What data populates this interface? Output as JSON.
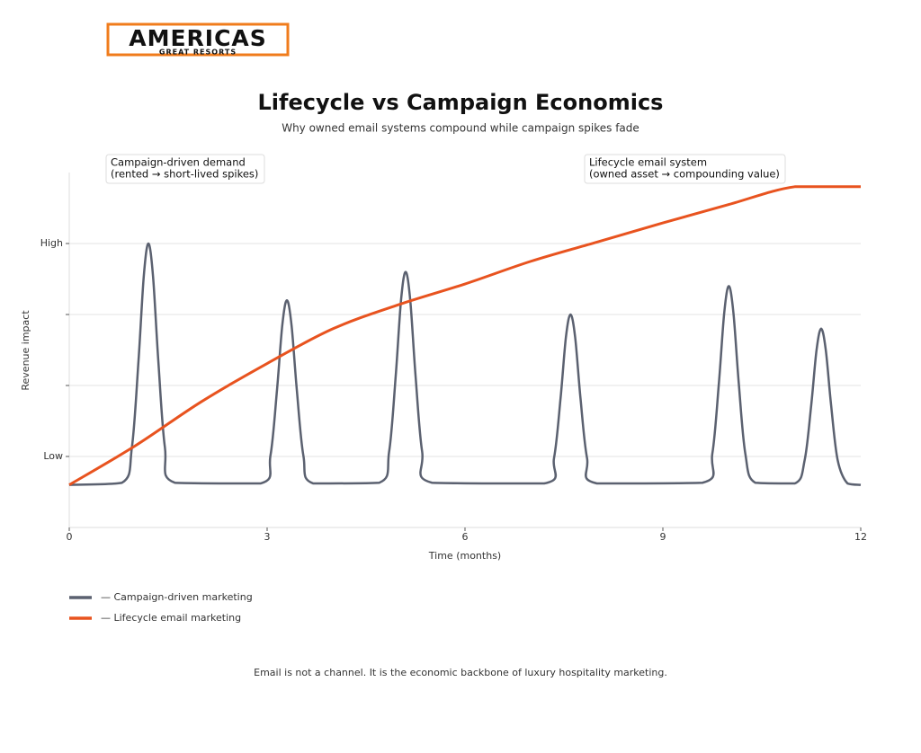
{
  "logo": {
    "name": "AMERICAS",
    "tagline": "GREAT RESORTS"
  },
  "chart_data": {
    "type": "line",
    "title": "Lifecycle vs Campaign Economics",
    "subtitle": "Why owned email systems compound while campaign spikes fade",
    "x_label": "Time (months)",
    "y_label": "Revenue impact",
    "xlim": [
      0,
      12
    ],
    "xticks": [
      0,
      3,
      6,
      9,
      12
    ],
    "ylim": [
      0,
      5
    ],
    "yticks": [
      {
        "value": 1,
        "label": "Low"
      },
      {
        "value": 2,
        "label": null
      },
      {
        "value": 3,
        "label": null
      },
      {
        "value": 4,
        "label": "High"
      }
    ],
    "grid": true,
    "annotations": [
      [
        "Campaign-driven demand",
        "(rented → short-lived spikes)"
      ],
      [
        "Lifecycle email system",
        "(owned asset → compounding value)"
      ]
    ],
    "series": [
      {
        "name": "— Campaign-driven marketing",
        "color": "#5b6170",
        "x": [
          0,
          0.8,
          0.95,
          1.05,
          1.13,
          1.2,
          1.27,
          1.35,
          1.45,
          1.6,
          2.9,
          3.05,
          3.15,
          3.23,
          3.3,
          3.37,
          3.45,
          3.55,
          3.7,
          4.7,
          4.85,
          4.95,
          5.03,
          5.1,
          5.17,
          5.25,
          5.35,
          5.5,
          7.2,
          7.35,
          7.45,
          7.53,
          7.6,
          7.67,
          7.75,
          7.85,
          8.0,
          9.6,
          9.75,
          9.85,
          9.93,
          10.0,
          10.07,
          10.15,
          10.25,
          10.4,
          11.0,
          11.15,
          11.25,
          11.33,
          11.4,
          11.47,
          11.55,
          11.65,
          11.8,
          12
        ],
        "values": [
          0.6,
          0.63,
          1.13,
          2.35,
          3.54,
          4.0,
          3.54,
          2.35,
          1.13,
          0.63,
          0.62,
          1.01,
          1.94,
          2.85,
          3.2,
          2.85,
          1.94,
          1.01,
          0.62,
          0.63,
          1.07,
          2.14,
          3.2,
          3.6,
          3.2,
          2.14,
          1.07,
          0.63,
          0.62,
          0.98,
          1.83,
          2.68,
          3.0,
          2.68,
          1.83,
          0.98,
          0.62,
          0.63,
          1.04,
          2.04,
          3.02,
          3.4,
          3.02,
          2.04,
          1.04,
          0.63,
          0.62,
          0.95,
          1.73,
          2.5,
          2.8,
          2.5,
          1.73,
          0.95,
          0.62,
          0.6
        ]
      },
      {
        "name": "— Lifecycle email marketing",
        "color": "#e8531f",
        "x": [
          0,
          1,
          2,
          3,
          4,
          5,
          6,
          7,
          8,
          9,
          10,
          11,
          12
        ],
        "values": [
          0.6,
          1.15,
          1.77,
          2.31,
          2.8,
          3.14,
          3.43,
          3.75,
          4.02,
          4.29,
          4.55,
          4.8,
          4.8
        ]
      }
    ]
  },
  "footer": "Email is not a channel. It is the economic backbone of luxury hospitality marketing."
}
